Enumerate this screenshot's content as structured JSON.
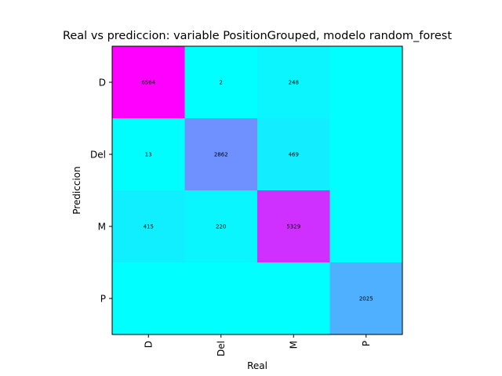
{
  "chart_data": {
    "type": "heatmap",
    "title": "Real vs prediccion: variable PositionGrouped, modelo random_forest",
    "xlabel": "Real",
    "ylabel": "Prediccion",
    "x_categories": [
      "D",
      "Del",
      "M",
      "P"
    ],
    "y_categories": [
      "D",
      "Del",
      "M",
      "P"
    ],
    "values": [
      [
        6564,
        2,
        248,
        null
      ],
      [
        13,
        2862,
        469,
        null
      ],
      [
        415,
        220,
        5329,
        null
      ],
      [
        null,
        null,
        null,
        2025
      ]
    ],
    "colormap": "cool",
    "vmin": 0,
    "vmax": 6564,
    "grid": false
  }
}
